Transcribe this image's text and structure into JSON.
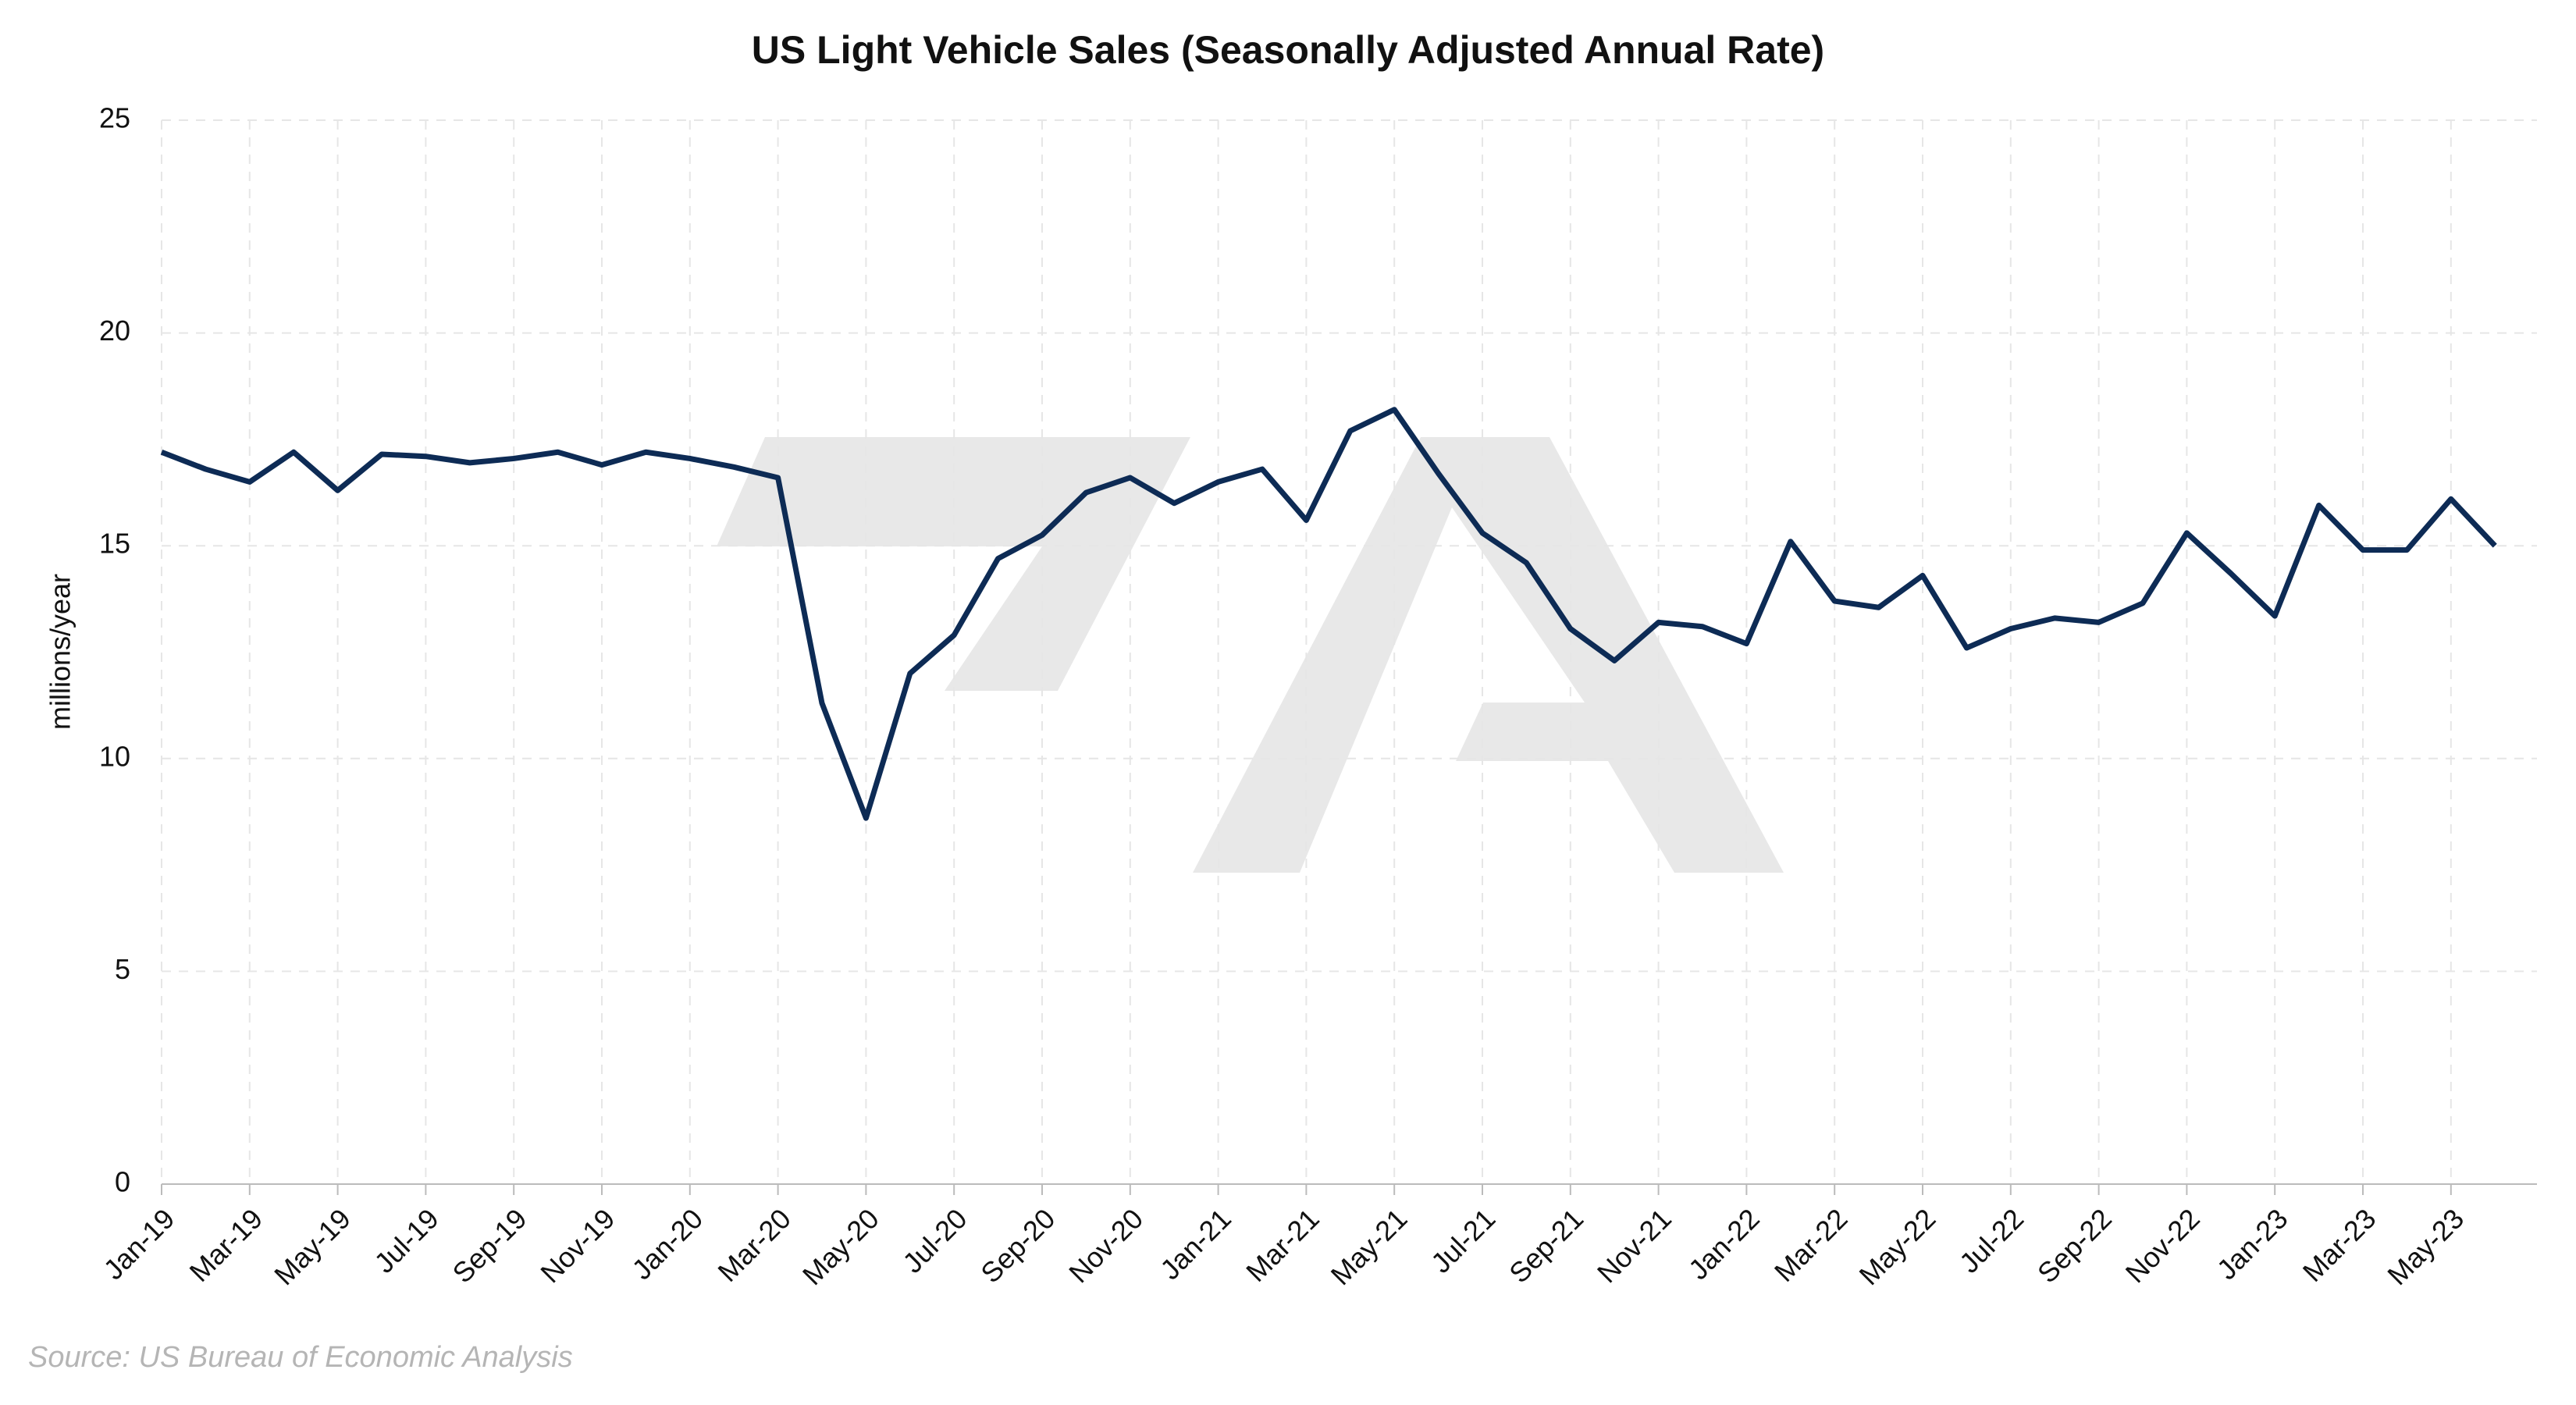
{
  "chart_data": {
    "type": "line",
    "title": "US Light Vehicle Sales (Seasonally Adjusted Annual Rate)",
    "y_label": "millions/year",
    "source": "Source: US Bureau of Economic Analysis",
    "categories": [
      "Jan-19",
      null,
      "Mar-19",
      null,
      "May-19",
      null,
      "Jul-19",
      null,
      "Sep-19",
      null,
      "Nov-19",
      null,
      "Jan-20",
      null,
      "Mar-20",
      null,
      "May-20",
      null,
      "Jul-20",
      null,
      "Sep-20",
      null,
      "Nov-20",
      null,
      "Jan-21",
      null,
      "Mar-21",
      null,
      "May-21",
      null,
      "Jul-21",
      null,
      "Sep-21",
      null,
      "Nov-21",
      null,
      "Jan-22",
      null,
      "Mar-22",
      null,
      "May-22",
      null,
      "Jul-22",
      null,
      "Sep-22",
      null,
      "Nov-22",
      null,
      "Jan-23",
      null,
      "Mar-23",
      null,
      "May-23",
      null
    ],
    "values": [
      17.2,
      16.8,
      16.5,
      17.2,
      16.3,
      17.15,
      17.1,
      16.95,
      17.05,
      17.2,
      16.9,
      17.2,
      17.05,
      16.85,
      16.6,
      11.3,
      8.6,
      12.0,
      12.9,
      14.7,
      15.25,
      16.25,
      16.6,
      16.0,
      16.5,
      16.8,
      15.6,
      17.7,
      18.2,
      16.7,
      15.3,
      14.6,
      13.05,
      12.3,
      13.2,
      13.1,
      12.7,
      15.1,
      13.7,
      13.55,
      14.3,
      12.6,
      13.05,
      13.3,
      13.2,
      13.65,
      15.3,
      14.35,
      13.35,
      15.95,
      14.9,
      14.9,
      16.1,
      15.0
    ],
    "color": "#0d2b55",
    "ylim": [
      0,
      25
    ],
    "yticks": [
      0,
      5,
      10,
      15,
      20,
      25
    ],
    "grid": true
  }
}
